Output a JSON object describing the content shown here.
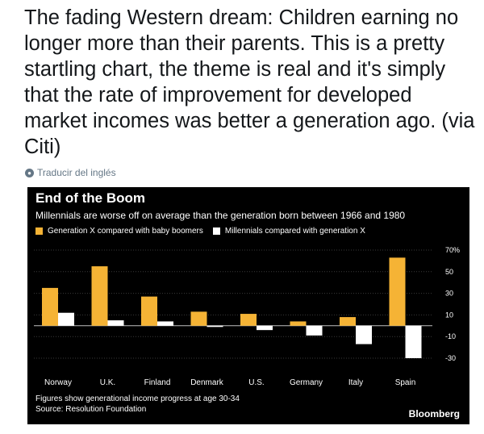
{
  "tweet": {
    "text": "The fading Western dream: Children earning no longer more than their parents. This is a pretty startling chart, the theme is real and it's simply that the rate of improvement for developed market incomes was better a generation ago. (via Citi)",
    "translate_label": "Traducir del inglés"
  },
  "colors": {
    "background": "#000000",
    "genx": "#f5b335",
    "millennials": "#ffffff",
    "grid": "#3a3a3a"
  },
  "chart_data": {
    "type": "bar",
    "title": "End of the Boom",
    "subtitle": "Millennials are worse off on average than the generation born between 1966 and 1980",
    "categories": [
      "Norway",
      "U.K.",
      "Finland",
      "Denmark",
      "U.S.",
      "Germany",
      "Italy",
      "Spain"
    ],
    "series": [
      {
        "name": "Generation X compared with baby boomers",
        "values": [
          35,
          55,
          27,
          13,
          11,
          4,
          8,
          63
        ]
      },
      {
        "name": "Millennials compared with generation X",
        "values": [
          12,
          5,
          4,
          0,
          -4,
          -9,
          -17,
          -30
        ]
      }
    ],
    "ylim": [
      -30,
      70
    ],
    "yticks": [
      -30,
      -10,
      10,
      30,
      50,
      70
    ],
    "ytick_labels": [
      "-30",
      "-10",
      "10",
      "30",
      "50",
      "70%"
    ],
    "legend_position": "top-left",
    "footnote_lines": [
      "Figures show generational income progress at age 30-34",
      "Source: Resolution Foundation"
    ],
    "brand": "Bloomberg"
  }
}
